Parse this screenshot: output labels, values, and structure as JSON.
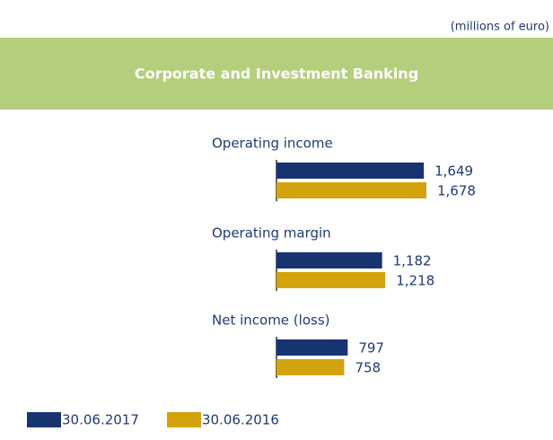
{
  "chart_data": {
    "type": "bar",
    "orientation": "horizontal",
    "title": "Corporate and Investment Banking",
    "subtitle": "(millions of euro)",
    "categories": [
      "Operating income",
      "Operating margin",
      "Net income (loss)"
    ],
    "series": [
      {
        "name": "30.06.2017",
        "color": "#173470",
        "values": [
          1649,
          1182,
          797
        ],
        "value_labels": [
          "1,649",
          "1,182",
          "797"
        ]
      },
      {
        "name": "30.06.2016",
        "color": "#d4a20c",
        "values": [
          1678,
          1218,
          758
        ],
        "value_labels": [
          "1,678",
          "1,218",
          "758"
        ]
      }
    ]
  }
}
